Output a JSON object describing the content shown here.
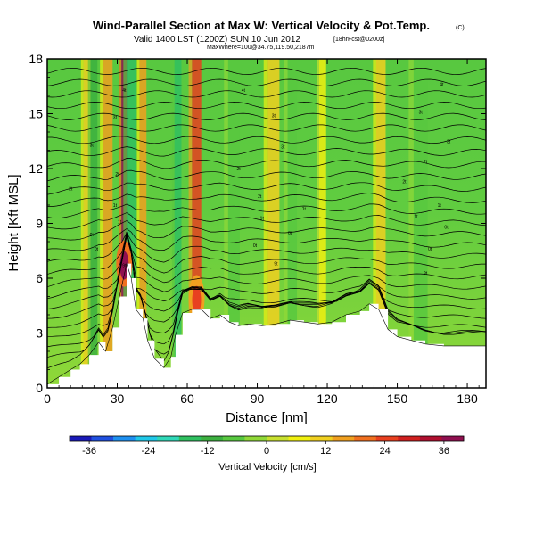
{
  "chart_data": {
    "type": "heatmap",
    "title": "Wind-Parallel Section at Max W: Vertical Velocity & Pot.Temp.",
    "title_mark": "(C)",
    "subtitle": "Valid 1400 LST (1200Z) SUN 10 Jun 2012",
    "subtitle_note": "[18hrFcst@0200z]",
    "subtitle2": "MaxWhere=100@34.75,119.50,2187m",
    "xlabel": "Distance [nm]",
    "ylabel": "Height [Kft MSL]",
    "xlim": [
      0,
      188
    ],
    "ylim": [
      0,
      18
    ],
    "xticks": [
      0,
      30,
      60,
      90,
      120,
      150,
      180
    ],
    "yticks": [
      0,
      3,
      6,
      9,
      12,
      15,
      18
    ],
    "colorbar": {
      "label": "Vertical Velocity [cm/s]",
      "range": [
        -40,
        40
      ],
      "tick_values": [
        -36,
        -24,
        -12,
        0,
        12,
        24,
        36
      ],
      "colors": [
        "#1a1ab8",
        "#2050e0",
        "#1e90f0",
        "#20c8e8",
        "#30d8b8",
        "#30c060",
        "#3cb040",
        "#58c840",
        "#90d838",
        "#c8e030",
        "#f0f010",
        "#f0d020",
        "#f0a020",
        "#f07020",
        "#e84020",
        "#d02020",
        "#b01030",
        "#901050"
      ]
    },
    "terrain_profile": [
      [
        0,
        0.2
      ],
      [
        5,
        0.6
      ],
      [
        10,
        1.0
      ],
      [
        14,
        1.3
      ],
      [
        18,
        1.8
      ],
      [
        22,
        2.5
      ],
      [
        25,
        2.0
      ],
      [
        28,
        3.3
      ],
      [
        31,
        5.0
      ],
      [
        34,
        6.8
      ],
      [
        36,
        6.0
      ],
      [
        38,
        4.3
      ],
      [
        41,
        3.8
      ],
      [
        43,
        2.6
      ],
      [
        46,
        1.6
      ],
      [
        50,
        1.1
      ],
      [
        53,
        1.7
      ],
      [
        55,
        2.9
      ],
      [
        58,
        4.1
      ],
      [
        62,
        4.3
      ],
      [
        66,
        4.3
      ],
      [
        70,
        3.8
      ],
      [
        74,
        4.0
      ],
      [
        78,
        3.6
      ],
      [
        82,
        3.4
      ],
      [
        86,
        3.5
      ],
      [
        92,
        3.4
      ],
      [
        98,
        3.5
      ],
      [
        104,
        3.7
      ],
      [
        110,
        3.6
      ],
      [
        116,
        3.5
      ],
      [
        122,
        3.6
      ],
      [
        128,
        4.0
      ],
      [
        134,
        4.2
      ],
      [
        138,
        4.6
      ],
      [
        142,
        4.3
      ],
      [
        146,
        3.2
      ],
      [
        150,
        2.8
      ],
      [
        156,
        2.6
      ],
      [
        162,
        2.4
      ],
      [
        170,
        2.3
      ],
      [
        180,
        2.3
      ],
      [
        188,
        2.3
      ]
    ],
    "updraft_columns": [
      {
        "x": 17,
        "width": 3,
        "value": 10
      },
      {
        "x": 26,
        "width": 4,
        "value": 14
      },
      {
        "x": 33,
        "width": 2.5,
        "value": 36
      },
      {
        "x": 41,
        "width": 3,
        "value": 14
      },
      {
        "x": 64,
        "width": 4,
        "value": 26
      },
      {
        "x": 97,
        "width": 5,
        "value": 10
      },
      {
        "x": 118,
        "width": 3,
        "value": 8
      },
      {
        "x": 143,
        "width": 4,
        "value": 12
      }
    ],
    "downdraft_columns": [
      {
        "x": 20,
        "width": 3,
        "value": -10
      },
      {
        "x": 36,
        "width": 4,
        "value": -16
      },
      {
        "x": 56,
        "width": 3,
        "value": -14
      },
      {
        "x": 80,
        "width": 5,
        "value": -8
      },
      {
        "x": 105,
        "width": 4,
        "value": -8
      },
      {
        "x": 160,
        "width": 6,
        "value": -6
      }
    ],
    "isentrope_labels": [
      {
        "x": 33,
        "y": 16.3,
        "text": "4t"
      },
      {
        "x": 84,
        "y": 16.3,
        "text": "4t"
      },
      {
        "x": 169,
        "y": 16.6,
        "text": "4t"
      },
      {
        "x": 29,
        "y": 14.8,
        "text": "3t"
      },
      {
        "x": 97,
        "y": 14.9,
        "text": "3t"
      },
      {
        "x": 160,
        "y": 15.1,
        "text": "3t"
      },
      {
        "x": 19,
        "y": 13.3,
        "text": "3t"
      },
      {
        "x": 101,
        "y": 13.2,
        "text": "3t"
      },
      {
        "x": 172,
        "y": 13.5,
        "text": "3t"
      },
      {
        "x": 30,
        "y": 11.7,
        "text": "2t"
      },
      {
        "x": 82,
        "y": 12.0,
        "text": "2t"
      },
      {
        "x": 162,
        "y": 12.4,
        "text": "2t"
      },
      {
        "x": 10,
        "y": 10.9,
        "text": "2t"
      },
      {
        "x": 91,
        "y": 10.5,
        "text": "2t"
      },
      {
        "x": 153,
        "y": 11.3,
        "text": "2t"
      },
      {
        "x": 29,
        "y": 10.0,
        "text": "1t"
      },
      {
        "x": 110,
        "y": 9.8,
        "text": "1t"
      },
      {
        "x": 168,
        "y": 10.0,
        "text": "1t"
      },
      {
        "x": 31,
        "y": 9.1,
        "text": "1t"
      },
      {
        "x": 92,
        "y": 9.3,
        "text": "1t"
      },
      {
        "x": 158,
        "y": 9.4,
        "text": "1t"
      },
      {
        "x": 19,
        "y": 8.4,
        "text": "0t"
      },
      {
        "x": 104,
        "y": 8.5,
        "text": "0t"
      },
      {
        "x": 171,
        "y": 8.8,
        "text": "0t"
      },
      {
        "x": 21,
        "y": 7.6,
        "text": "0t"
      },
      {
        "x": 89,
        "y": 7.8,
        "text": "0t"
      },
      {
        "x": 164,
        "y": 7.6,
        "text": "0t"
      },
      {
        "x": 33,
        "y": 6.7,
        "text": "9t"
      },
      {
        "x": 98,
        "y": 6.8,
        "text": "9t"
      },
      {
        "x": 162,
        "y": 6.3,
        "text": "9t"
      },
      {
        "x": 66,
        "y": 5.4,
        "text": "9t"
      }
    ]
  }
}
